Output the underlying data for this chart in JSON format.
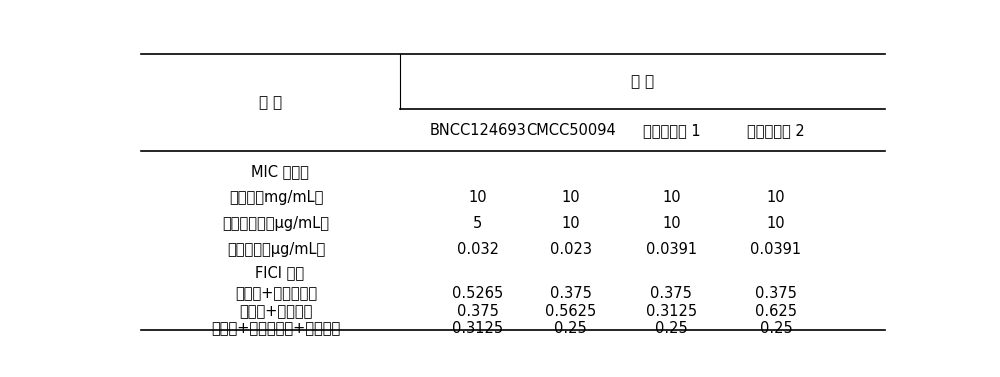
{
  "title_row": "菌 株",
  "col_header_row": [
    "BNCC124693",
    "CMCC50094",
    "临床分离株 1",
    "临床分离株 2"
  ],
  "row_header_label": "药 物",
  "section_headers": [
    "MIC 値测定",
    "FICI 指数"
  ],
  "rows": [
    {
      "label": "青蒿酸（mg/mL）",
      "values": [
        "10",
        "10",
        "10",
        "10"
      ]
    },
    {
      "label": "氨苄西林钓（μg/mL）",
      "values": [
        "5",
        "10",
        "10",
        "10"
      ]
    },
    {
      "label": "环丙沙星（μg/mL）",
      "values": [
        "0.032",
        "0.023",
        "0.0391",
        "0.0391"
      ]
    },
    {
      "label": "青蒿酸+氨苄西林钓",
      "values": [
        "0.5265",
        "0.375",
        "0.375",
        "0.375"
      ]
    },
    {
      "label": "青蒿酸+环丙沙星",
      "values": [
        "0.375",
        "0.5625",
        "0.3125",
        "0.625"
      ]
    },
    {
      "label": "青蒿酸+氨苄西林钓+环丙沙星",
      "values": [
        "0.3125",
        "0.25",
        "0.25",
        "0.25"
      ]
    }
  ],
  "bg_color": "#ffffff",
  "text_color": "#000000",
  "line_color": "#000000",
  "font_size": 10.5,
  "header_font_size": 11
}
